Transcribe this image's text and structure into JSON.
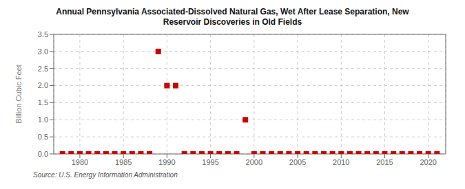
{
  "chart_data": {
    "type": "scatter",
    "title": "Annual Pennsylvania Associated-Dissolved Natural Gas, Wet After Lease Separation, New\nReservoir Discoveries in Old Fields",
    "ylabel": "Billion Cubic Feet",
    "annotations": [
      "Source: U.S. Energy Information Administration"
    ],
    "x": [
      1978,
      1979,
      1980,
      1981,
      1982,
      1983,
      1984,
      1985,
      1986,
      1987,
      1988,
      1989,
      1990,
      1991,
      1992,
      1993,
      1994,
      1995,
      1996,
      1997,
      1998,
      1999,
      2000,
      2001,
      2002,
      2003,
      2004,
      2005,
      2006,
      2007,
      2008,
      2009,
      2010,
      2011,
      2012,
      2013,
      2014,
      2015,
      2016,
      2017,
      2018,
      2019,
      2020,
      2021
    ],
    "values": [
      0.0,
      0.0,
      0.0,
      0.0,
      0.0,
      0.0,
      0.0,
      0.0,
      0.0,
      0.0,
      0.0,
      3.0,
      2.0,
      2.0,
      0.0,
      0.0,
      0.0,
      0.0,
      0.0,
      0.0,
      0.0,
      1.0,
      0.0,
      0.0,
      0.0,
      0.0,
      0.0,
      0.0,
      0.0,
      0.0,
      0.0,
      0.0,
      0.0,
      0.0,
      0.0,
      0.0,
      0.0,
      0.0,
      0.0,
      0.0,
      0.0,
      0.0,
      0.0,
      0.0
    ],
    "color": "#cc0000",
    "marker": "square",
    "xlim": [
      1977,
      2022
    ],
    "xticks": [
      1980,
      1985,
      1990,
      1995,
      2000,
      2005,
      2010,
      2015,
      2020
    ],
    "ylim": [
      0,
      3.5
    ],
    "yticks": [
      {
        "value": 0.0,
        "label": "0.0"
      },
      0.5,
      {
        "value": 1.0,
        "label": "1.0"
      },
      1.5,
      {
        "value": 2.0,
        "label": "2.0"
      },
      2.5,
      {
        "value": 3.0,
        "label": "3.0"
      },
      3.5
    ],
    "grid": true
  }
}
